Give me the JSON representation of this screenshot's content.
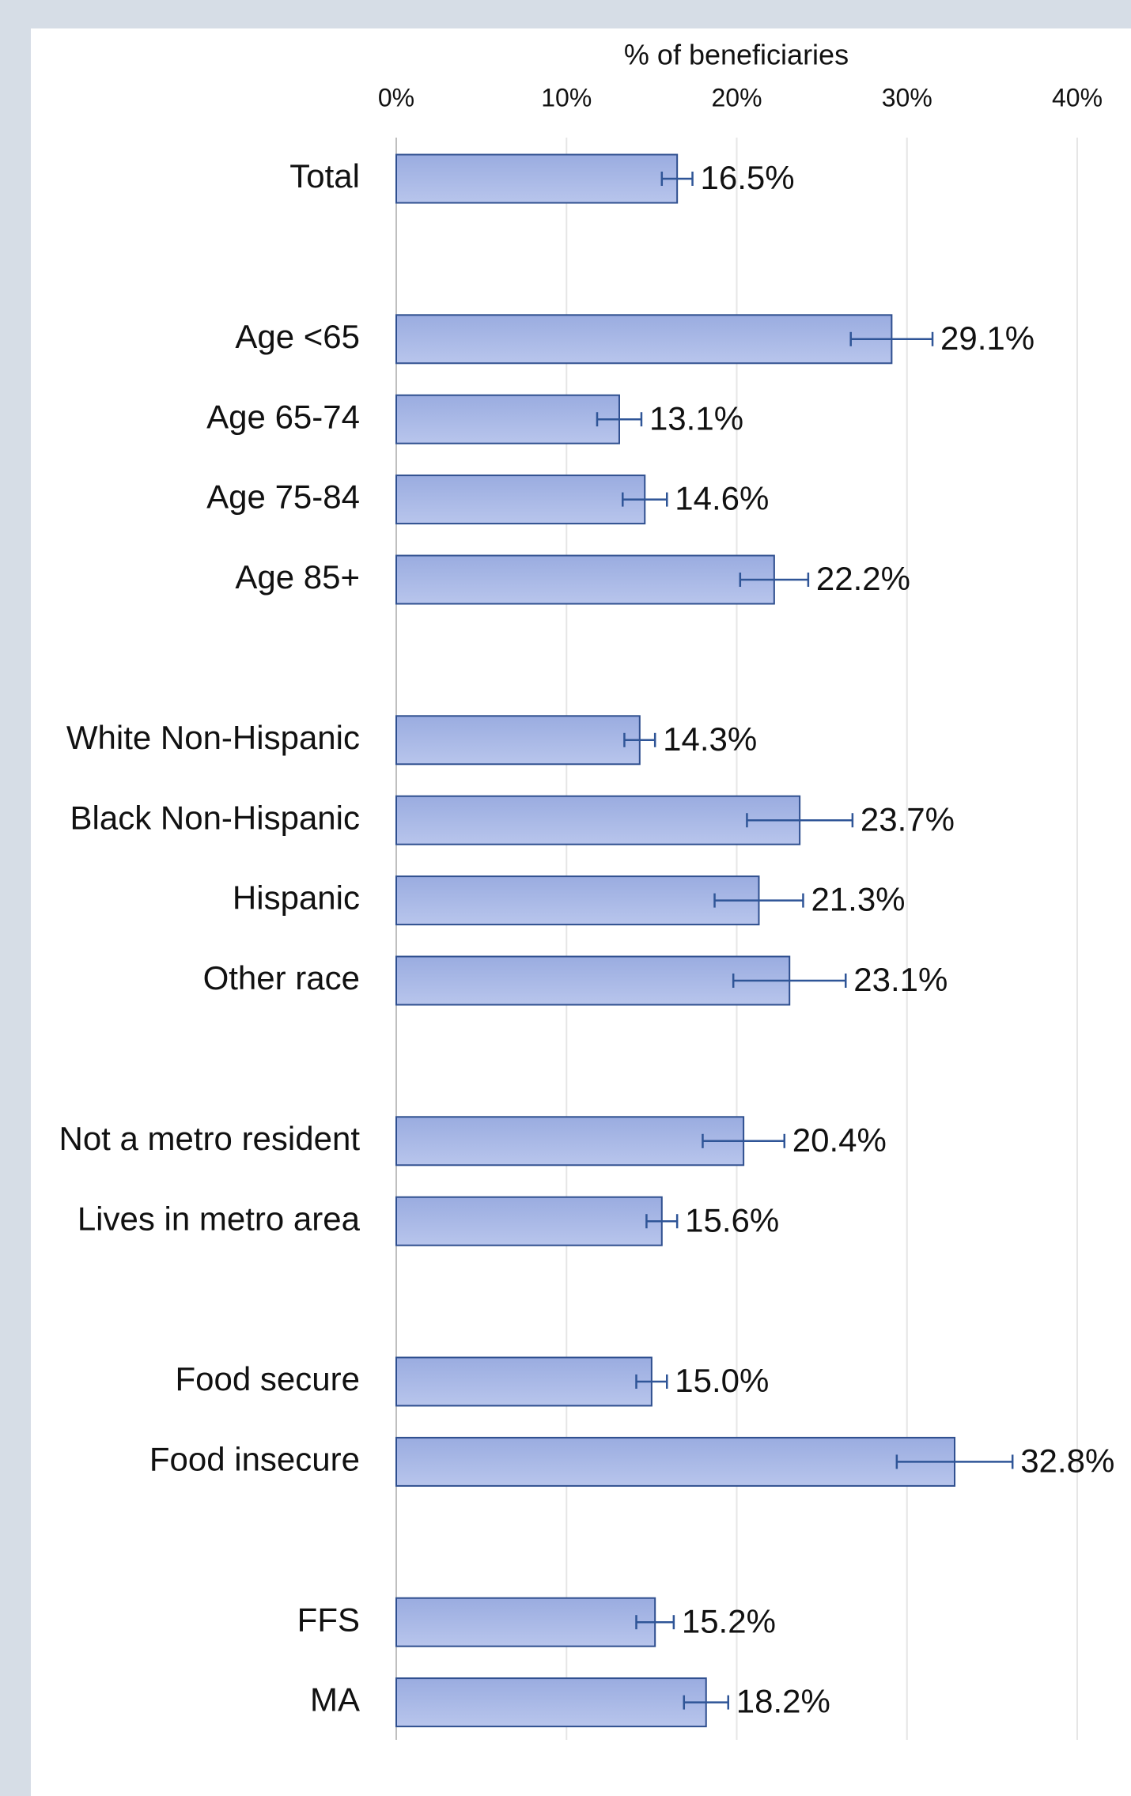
{
  "chart_data": {
    "type": "bar",
    "orientation": "horizontal",
    "x_label": "% of beneficiaries",
    "categories": [
      "Total",
      null,
      "Age <65",
      "Age 65-74",
      "Age 75-84",
      "Age 85+",
      null,
      "White Non-Hispanic",
      "Black Non-Hispanic",
      "Hispanic",
      "Other race",
      null,
      "Not a metro resident",
      "Lives in metro area",
      null,
      "Food secure",
      "Food insecure",
      null,
      "FFS",
      "MA"
    ],
    "values": [
      16.5,
      null,
      29.1,
      13.1,
      14.6,
      22.2,
      null,
      14.3,
      23.7,
      21.3,
      23.1,
      null,
      20.4,
      15.6,
      null,
      15.0,
      32.8,
      null,
      15.2,
      18.2
    ],
    "value_labels": [
      "16.5%",
      null,
      "29.1%",
      "13.1%",
      "14.6%",
      "22.2%",
      null,
      "14.3%",
      "23.7%",
      "21.3%",
      "23.1%",
      null,
      "20.4%",
      "15.6%",
      null,
      "15.0%",
      "32.8%",
      null,
      "15.2%",
      "18.2%"
    ],
    "errors": [
      0.9,
      null,
      2.4,
      1.3,
      1.3,
      2.0,
      null,
      0.9,
      3.1,
      2.6,
      3.3,
      null,
      2.4,
      0.9,
      null,
      0.9,
      3.4,
      null,
      1.1,
      1.3
    ],
    "color": "#a9b8e6",
    "edge_color": "#2f4f8f",
    "error_color": "#2f5597",
    "xlim": [
      0,
      40
    ],
    "xticks": [
      {
        "value": 0,
        "label": "0%"
      },
      {
        "value": 10,
        "label": "10%"
      },
      {
        "value": 20,
        "label": "20%"
      },
      {
        "value": 30,
        "label": "30%"
      },
      {
        "value": 40,
        "label": "40%"
      }
    ],
    "grid": true
  }
}
